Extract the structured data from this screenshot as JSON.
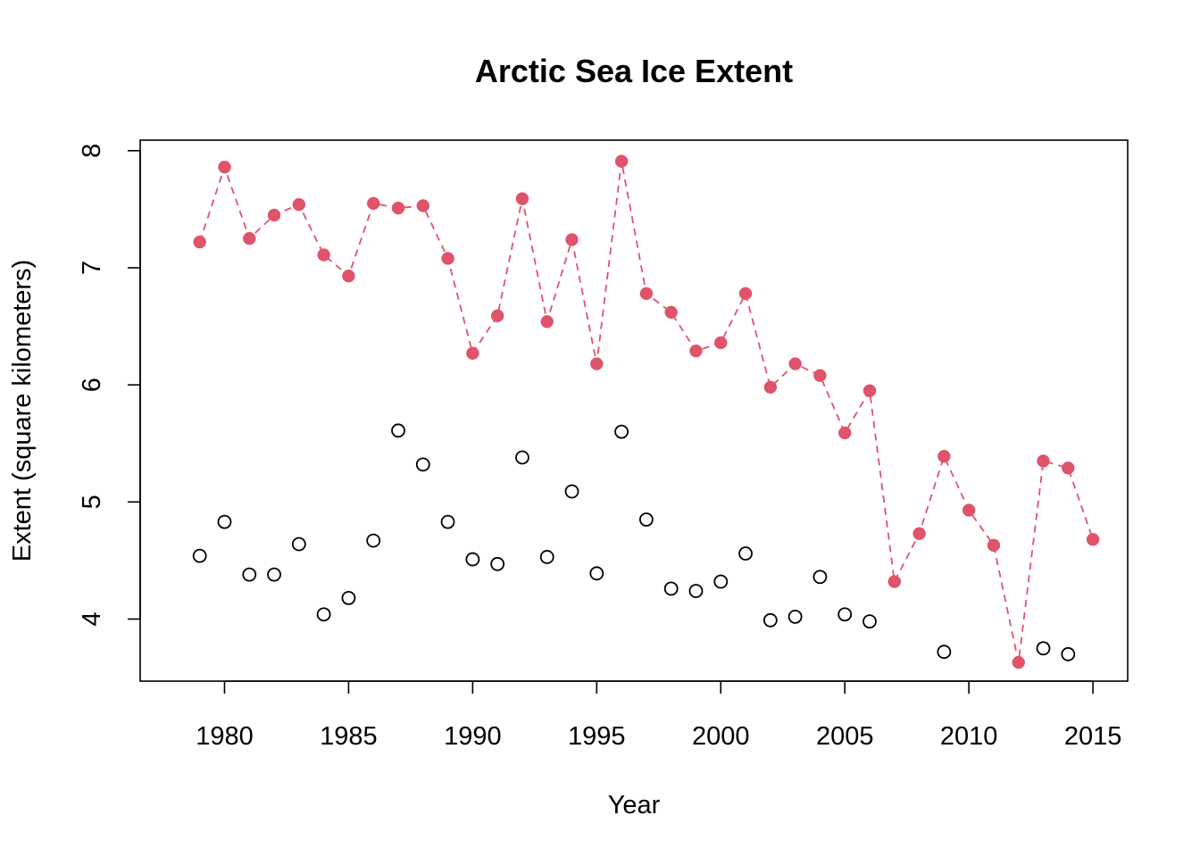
{
  "chart_data": {
    "type": "scatter",
    "title": "Arctic Sea Ice Extent",
    "xlabel": "Year",
    "ylabel": "Extent (square kilometers)",
    "xlim": [
      1976.6,
      2016.4
    ],
    "ylim": [
      3.47,
      8.09
    ],
    "xticks": [
      1980,
      1985,
      1990,
      1995,
      2000,
      2005,
      2010,
      2015
    ],
    "yticks": [
      4,
      5,
      6,
      7,
      8
    ],
    "grid": false,
    "legend": "none",
    "series": [
      {
        "marker": "open-circle",
        "color": "#000000",
        "line": "none",
        "x": [
          1979,
          1980,
          1981,
          1982,
          1983,
          1984,
          1985,
          1986,
          1987,
          1988,
          1989,
          1990,
          1991,
          1992,
          1993,
          1994,
          1995,
          1996,
          1997,
          1998,
          1999,
          2000,
          2001,
          2002,
          2003,
          2004,
          2005,
          2006,
          2009,
          2013,
          2014
        ],
        "y": [
          4.54,
          4.83,
          4.38,
          4.38,
          4.64,
          4.04,
          4.18,
          4.67,
          5.61,
          5.32,
          4.83,
          4.51,
          4.47,
          5.38,
          4.53,
          5.09,
          4.39,
          5.6,
          4.85,
          4.26,
          4.24,
          4.32,
          4.56,
          3.99,
          4.02,
          4.36,
          4.04,
          3.98,
          3.72,
          3.75,
          3.7
        ]
      },
      {
        "marker": "filled-circle",
        "color": "#DF536B",
        "line": "dashed",
        "x": [
          1979,
          1980,
          1981,
          1982,
          1983,
          1984,
          1985,
          1986,
          1987,
          1988,
          1989,
          1990,
          1991,
          1992,
          1993,
          1994,
          1995,
          1996,
          1997,
          1998,
          1999,
          2000,
          2001,
          2002,
          2003,
          2004,
          2005,
          2006,
          2007,
          2008,
          2009,
          2010,
          2011,
          2012,
          2013,
          2014,
          2015
        ],
        "y": [
          7.22,
          7.86,
          7.25,
          7.45,
          7.54,
          7.11,
          6.93,
          7.55,
          7.51,
          7.53,
          7.08,
          6.27,
          6.59,
          7.59,
          6.54,
          7.24,
          6.18,
          7.91,
          6.78,
          6.62,
          6.29,
          6.36,
          6.78,
          5.98,
          6.18,
          6.08,
          5.59,
          5.95,
          4.32,
          4.73,
          5.39,
          4.93,
          4.63,
          3.63,
          5.35,
          5.29,
          4.68
        ]
      }
    ]
  }
}
